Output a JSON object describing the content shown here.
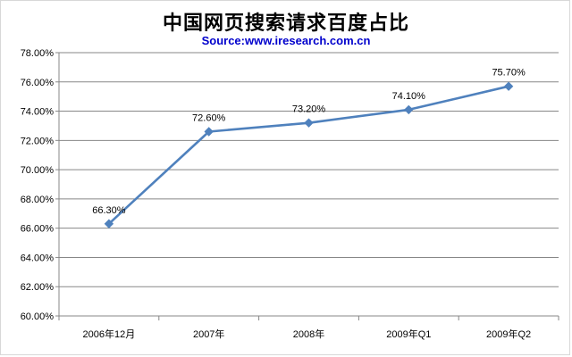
{
  "chart_data": {
    "type": "line",
    "title": "中国网页搜索请求百度占比",
    "subtitle": "Source:www.iresearch.com.cn",
    "categories": [
      "2006年12月",
      "2007年",
      "2008年",
      "2009年Q1",
      "2009年Q2"
    ],
    "series": [
      {
        "values": [
          66.3,
          72.6,
          73.2,
          74.1,
          75.7
        ],
        "data_labels": [
          "66.30%",
          "72.60%",
          "73.20%",
          "74.10%",
          "75.70%"
        ],
        "color": "#4f81bd"
      }
    ],
    "ylim": [
      60,
      78
    ],
    "ytick_step": 2,
    "yticks": [
      "60.00%",
      "62.00%",
      "64.00%",
      "66.00%",
      "68.00%",
      "70.00%",
      "72.00%",
      "74.00%",
      "76.00%",
      "78.00%"
    ],
    "grid": true,
    "legend": "none"
  }
}
